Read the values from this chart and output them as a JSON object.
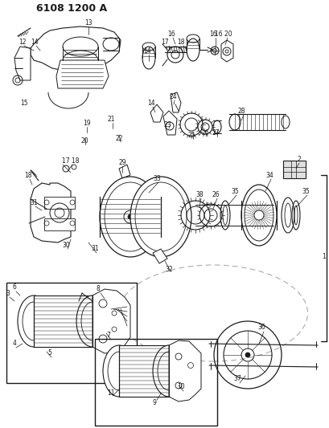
{
  "title": "6108 1200 A",
  "bg_color": "#ffffff",
  "dark": "#1a1a1a",
  "gray": "#888888",
  "fig_width": 4.1,
  "fig_height": 5.33,
  "dpi": 100,
  "labels": [
    [
      "13",
      110,
      28
    ],
    [
      "12",
      28,
      52
    ],
    [
      "14",
      43,
      52
    ],
    [
      "15",
      30,
      128
    ],
    [
      "14",
      183,
      63
    ],
    [
      "16",
      213,
      42
    ],
    [
      "17",
      205,
      52
    ],
    [
      "18",
      225,
      52
    ],
    [
      "16",
      265,
      42
    ],
    [
      "16 20",
      278,
      42
    ],
    [
      "2",
      372,
      198
    ],
    [
      "19",
      108,
      153
    ],
    [
      "21",
      138,
      148
    ],
    [
      "20",
      105,
      175
    ],
    [
      "22",
      148,
      172
    ],
    [
      "14",
      188,
      128
    ],
    [
      "24",
      215,
      120
    ],
    [
      "23",
      208,
      155
    ],
    [
      "25",
      238,
      168
    ],
    [
      "26",
      255,
      165
    ],
    [
      "27",
      268,
      165
    ],
    [
      "28",
      300,
      138
    ],
    [
      "17 18",
      88,
      200
    ],
    [
      "29",
      152,
      202
    ],
    [
      "33",
      195,
      222
    ],
    [
      "38",
      248,
      242
    ],
    [
      "26",
      268,
      242
    ],
    [
      "35",
      292,
      238
    ],
    [
      "34",
      335,
      218
    ],
    [
      "35",
      380,
      238
    ],
    [
      "1",
      403,
      320
    ],
    [
      "30",
      82,
      305
    ],
    [
      "31",
      42,
      252
    ],
    [
      "31",
      118,
      310
    ],
    [
      "32",
      210,
      335
    ],
    [
      "18",
      35,
      218
    ],
    [
      "3",
      10,
      365
    ],
    [
      "4",
      18,
      428
    ],
    [
      "5",
      62,
      440
    ],
    [
      "6",
      18,
      358
    ],
    [
      "7",
      135,
      418
    ],
    [
      "8",
      122,
      360
    ],
    [
      "9",
      192,
      502
    ],
    [
      "10",
      225,
      482
    ],
    [
      "11",
      138,
      490
    ],
    [
      "36",
      325,
      408
    ],
    [
      "37",
      295,
      472
    ]
  ]
}
